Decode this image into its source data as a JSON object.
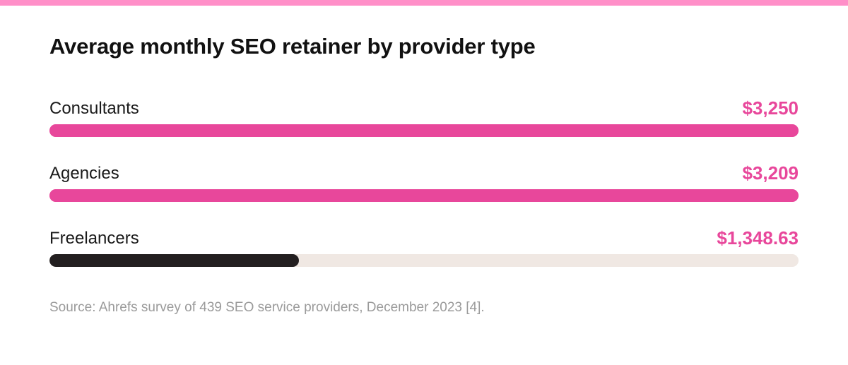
{
  "colors": {
    "top_band": "#ff8fc8",
    "accent": "#e8479b",
    "dark": "#231f20",
    "track": "#f0e8e3"
  },
  "chart_data": {
    "type": "bar",
    "orientation": "horizontal",
    "title": "Average monthly SEO retainer by provider type",
    "categories": [
      "Consultants",
      "Agencies",
      "Freelancers"
    ],
    "values": [
      3250,
      3209,
      1348.63
    ],
    "value_labels": [
      "$3,250",
      "$3,209",
      "$1,348.63"
    ],
    "xlim": [
      0,
      9750
    ],
    "bar_colors": [
      "#e8479b",
      "#e8479b",
      "#231f20"
    ],
    "track_filled": [
      true,
      true,
      false
    ],
    "grid": false,
    "legend": "none",
    "source": "Source: Ahrefs survey of 439 SEO service providers, December 2023 [4]."
  }
}
